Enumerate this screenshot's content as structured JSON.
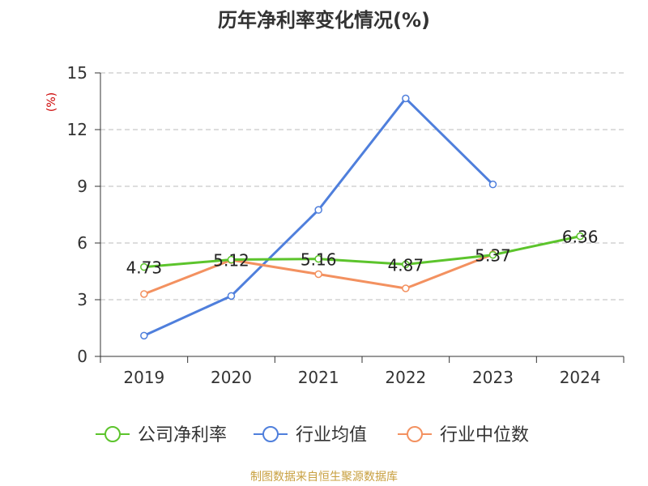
{
  "chart_data": {
    "type": "line",
    "title": "历年净利率变化情况(%)",
    "ylabel": "(%)",
    "xlabel": "",
    "categories": [
      "2019",
      "2020",
      "2021",
      "2022",
      "2023",
      "2024"
    ],
    "y_ticks": [
      0,
      3,
      6,
      9,
      12,
      15
    ],
    "ylim": [
      0,
      15
    ],
    "grid": "horizontal-dashed",
    "legend_position": "bottom-center",
    "series": [
      {
        "name": "公司净利率",
        "color": "#5cc42c",
        "values": [
          4.73,
          5.12,
          5.16,
          4.87,
          5.37,
          6.36
        ],
        "labels": [
          "4.73",
          "5.12",
          "5.16",
          "4.87",
          "5.37",
          "6.36"
        ]
      },
      {
        "name": "行业均值",
        "color": "#4f7fdc",
        "values": [
          1.1,
          3.2,
          7.75,
          13.65,
          9.1,
          null
        ]
      },
      {
        "name": "行业中位数",
        "color": "#f39160",
        "values": [
          3.3,
          5.1,
          4.35,
          3.6,
          5.4,
          null
        ]
      }
    ]
  },
  "source": "制图数据来自恒生聚源数据库"
}
